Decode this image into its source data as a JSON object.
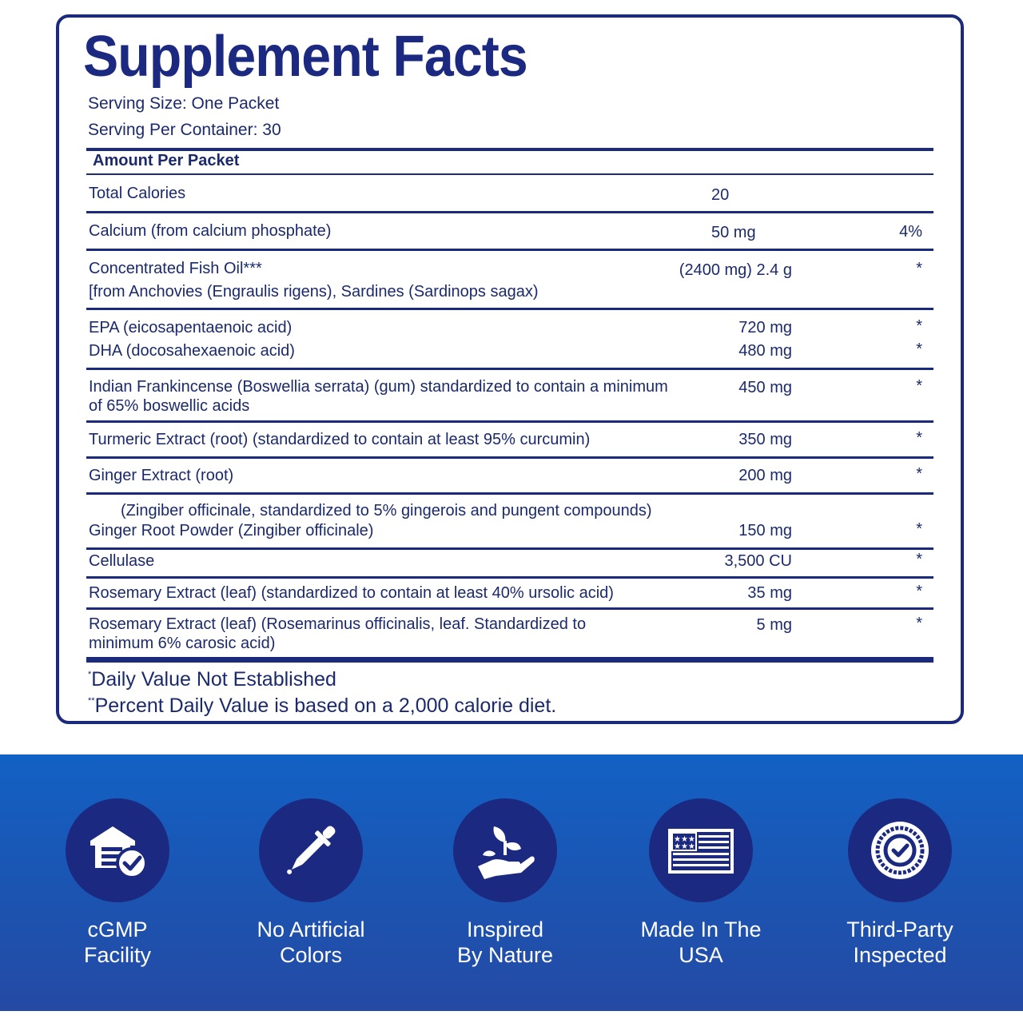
{
  "title": "Supplement Facts",
  "serving_size": "Serving Size: One Packet",
  "servings_per_container": "Serving Per Container: 30",
  "amount_header": "Amount Per Packet",
  "rows": [
    {
      "name": "Total Calories",
      "amount": "20"
    },
    {
      "name": "Calcium (from calcium phosphate)",
      "amount": "50 mg",
      "dv": "4%"
    },
    {
      "name": "Concentrated Fish Oil***",
      "name2": "[from Anchovies (Engraulis rigens), Sardines (Sardinops sagax)",
      "amount": "(2400 mg) 2.4 g",
      "dv": "*"
    },
    {
      "name": "EPA (eicosapentaenoic acid)",
      "amount": "720 mg",
      "dv": "*"
    },
    {
      "name": "DHA (docosahexaenoic acid)",
      "amount": "480 mg",
      "dv": "*"
    },
    {
      "name": "Indian Frankincense (Boswellia serrata) (gum) standardized to contain a minimum",
      "name2": "of 65% boswellic acids",
      "amount": "450 mg",
      "dv": "*"
    },
    {
      "name": "Turmeric Extract (root) (standardized to contain at least 95% curcumin)",
      "amount": "350 mg",
      "dv": "*"
    },
    {
      "name": "Ginger Extract (root)",
      "amount": "200 mg",
      "dv": "*"
    },
    {
      "name": "(Zingiber officinale, standardized to 5% gingerois and pungent compounds)"
    },
    {
      "name": "Ginger Root Powder (Zingiber officinale)",
      "amount": "150 mg",
      "dv": "*"
    },
    {
      "name": "Cellulase",
      "amount": "3,500 CU",
      "dv": "*"
    },
    {
      "name": "Rosemary Extract (leaf) (standardized to contain at least 40% ursolic acid)",
      "amount": "35 mg",
      "dv": "*"
    },
    {
      "name": "Rosemary Extract (leaf) (Rosemarinus officinalis, leaf. Standardized to",
      "name2": "minimum 6% carosic acid)",
      "amount": "5 mg",
      "dv": "*"
    }
  ],
  "footnotes": [
    {
      "mark": "*",
      "text": "Daily Value Not Established"
    },
    {
      "mark": "**",
      "text": "Percent Daily Value is based on a 2,000 calorie diet."
    }
  ],
  "badges": [
    {
      "icon": "facility-check-icon",
      "line1": "cGMP",
      "line2": "Facility"
    },
    {
      "icon": "dropper-icon",
      "line1": "No Artificial",
      "line2": "Colors"
    },
    {
      "icon": "hand-plant-icon",
      "line1": "Inspired",
      "line2": "By Nature"
    },
    {
      "icon": "usa-flag-icon",
      "line1": "Made In The",
      "line2": "USA"
    },
    {
      "icon": "seal-check-icon",
      "line1": "Third-Party",
      "line2": "Inspected"
    }
  ],
  "colors": {
    "navy": "#1b2a80",
    "band_top": "#1261c4",
    "band_bottom": "#244aa4",
    "text": "#1b2a6b"
  }
}
